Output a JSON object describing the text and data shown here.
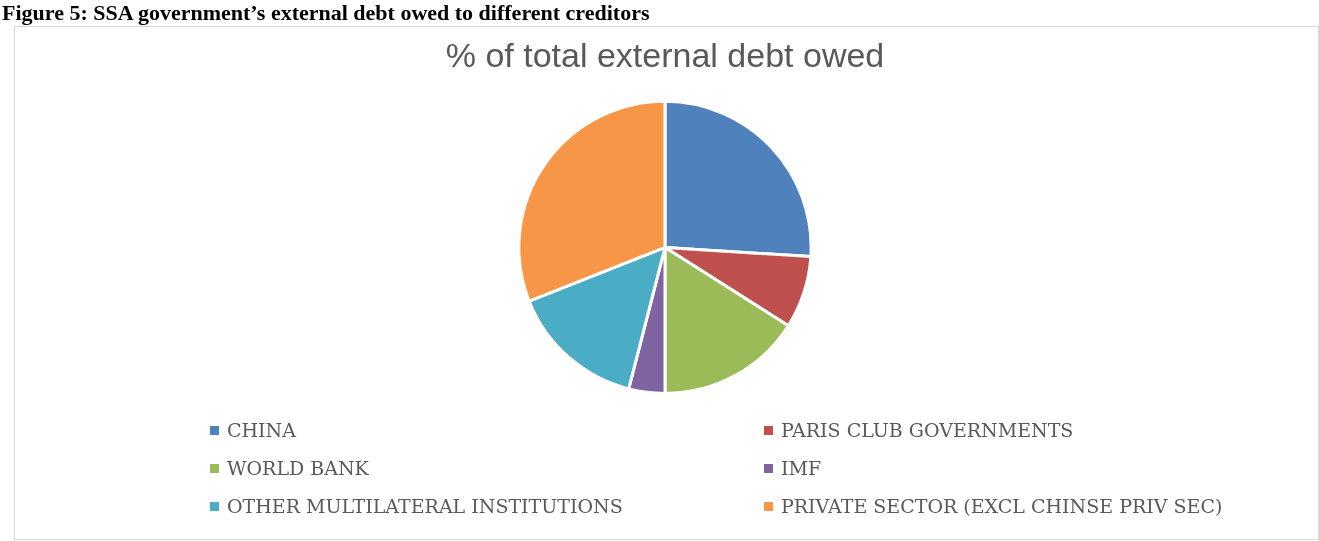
{
  "chart_data": {
    "type": "pie",
    "title": "% of total external debt owed",
    "annotations": [
      "Figure 5: SSA government’s external debt owed to different creditors"
    ],
    "categories": [
      "CHINA",
      "PARIS CLUB GOVERNMENTS",
      "WORLD BANK",
      "IMF",
      "OTHER MULTILATERAL INSTITUTIONS",
      "PRIVATE SECTOR (EXCL CHINSE PRIV SEC)"
    ],
    "values": [
      26,
      8,
      16,
      4,
      15,
      31
    ],
    "colors": [
      "#4f81bd",
      "#c0504d",
      "#9bbb59",
      "#8064a2",
      "#4bacc6",
      "#f79646"
    ],
    "legend": "bottom"
  }
}
